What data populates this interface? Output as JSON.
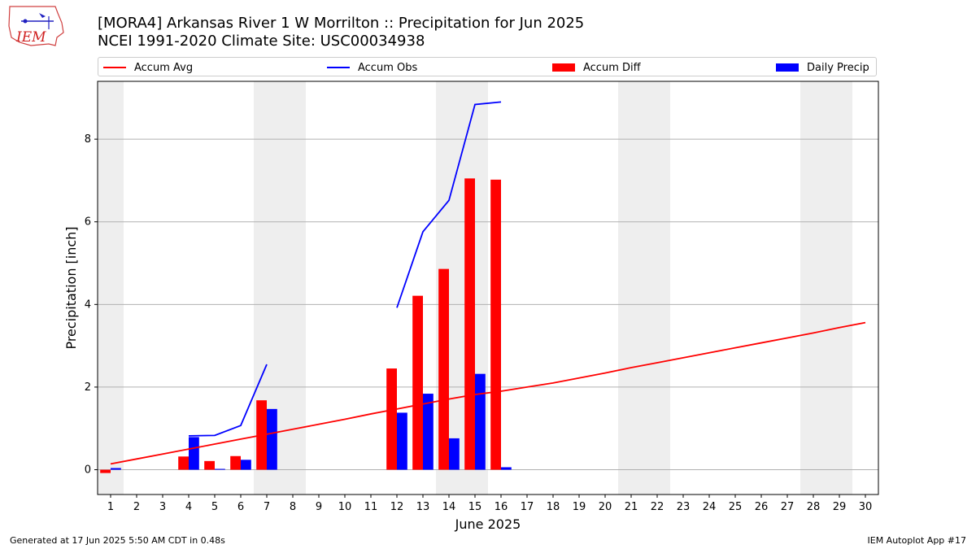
{
  "title_line1": "[MORA4] Arkansas River 1 W Morrilton :: Precipitation for Jun 2025",
  "title_line2": "NCEI 1991-2020 Climate Site: USC00034938",
  "logo_text": "IEM",
  "footer_left": "Generated at 17 Jun 2025 5:50 AM CDT in 0.48s",
  "footer_right": "IEM Autoplot App #17",
  "colors": {
    "avg": "#ff0000",
    "obs": "#0000ff",
    "diff": "#ff0000",
    "daily": "#0000ff",
    "weekend": "#eeeeee",
    "grid": "#b0b0b0"
  },
  "legend": [
    {
      "label": "Accum Avg",
      "kind": "line",
      "color": "#ff0000"
    },
    {
      "label": "Accum Obs",
      "kind": "line",
      "color": "#0000ff"
    },
    {
      "label": "Accum Diff",
      "kind": "box",
      "color": "#ff0000"
    },
    {
      "label": "Daily Precip",
      "kind": "box",
      "color": "#0000ff"
    }
  ],
  "chart_data": {
    "type": "bar",
    "xlabel": "June 2025",
    "ylabel": "Precipitation [inch]",
    "xlim": [
      0.5,
      30.5
    ],
    "ylim": [
      -0.6,
      9.4
    ],
    "yticks": [
      0,
      2,
      4,
      6,
      8
    ],
    "xticks": [
      1,
      2,
      3,
      4,
      5,
      6,
      7,
      8,
      9,
      10,
      11,
      12,
      13,
      14,
      15,
      16,
      17,
      18,
      19,
      20,
      21,
      22,
      23,
      24,
      25,
      26,
      27,
      28,
      29,
      30
    ],
    "grid": "y",
    "legend_position": "top",
    "weekend_days": [
      1,
      7,
      8,
      14,
      15,
      21,
      22,
      28,
      29
    ],
    "accum_avg": {
      "x": [
        1,
        2,
        3,
        4,
        5,
        6,
        7,
        8,
        9,
        10,
        11,
        12,
        13,
        14,
        15,
        16,
        17,
        18,
        19,
        20,
        21,
        22,
        23,
        24,
        25,
        26,
        27,
        28,
        29,
        30
      ],
      "y": [
        0.14,
        0.26,
        0.38,
        0.5,
        0.62,
        0.74,
        0.86,
        0.98,
        1.1,
        1.22,
        1.35,
        1.47,
        1.59,
        1.71,
        1.82,
        1.9,
        2.0,
        2.1,
        2.22,
        2.34,
        2.47,
        2.59,
        2.71,
        2.83,
        2.95,
        3.07,
        3.19,
        3.31,
        3.44,
        3.56
      ]
    },
    "accum_obs": [
      {
        "x": [
          4,
          5,
          6,
          7
        ],
        "y": [
          0.82,
          0.83,
          1.07,
          2.55
        ]
      },
      {
        "x": [
          12,
          13,
          14,
          15,
          16
        ],
        "y": [
          3.92,
          5.76,
          6.52,
          8.84,
          8.9
        ]
      }
    ],
    "accum_diff": {
      "x": [
        1,
        4,
        5,
        6,
        7,
        12,
        13,
        14,
        15,
        16
      ],
      "y": [
        -0.08,
        0.32,
        0.21,
        0.33,
        1.68,
        2.45,
        4.21,
        4.86,
        7.05,
        7.02
      ]
    },
    "daily_precip": {
      "x": [
        1,
        4,
        5,
        6,
        7,
        12,
        13,
        14,
        15,
        16
      ],
      "y": [
        0.04,
        0.79,
        0.02,
        0.24,
        1.47,
        1.38,
        1.84,
        0.76,
        2.32,
        0.06
      ]
    }
  }
}
